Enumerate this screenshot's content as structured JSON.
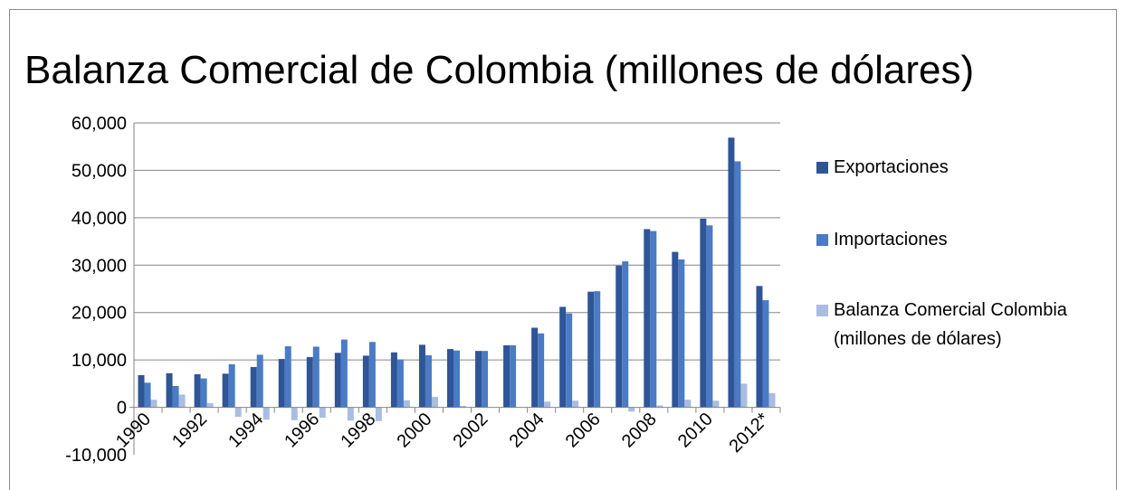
{
  "chart_data": {
    "type": "bar",
    "title": "Balanza Comercial de Colombia (millones de dólares)",
    "xlabel": "",
    "ylabel": "",
    "ylim": [
      -10000,
      60000
    ],
    "yticks": [
      "-10,000",
      "0",
      "10,000",
      "20,000",
      "30,000",
      "40,000",
      "50,000",
      "60,000"
    ],
    "ytick_values": [
      -10000,
      0,
      10000,
      20000,
      30000,
      40000,
      50000,
      60000
    ],
    "categories": [
      "1990",
      "1991",
      "1992",
      "1993",
      "1994",
      "1995",
      "1996",
      "1997",
      "1998",
      "1999",
      "2000",
      "2001",
      "2002",
      "2003",
      "2004",
      "2005",
      "2006",
      "2007",
      "2008",
      "2009",
      "2010",
      "2011",
      "2012*"
    ],
    "xtick_labels": [
      "1990",
      "",
      "1992",
      "",
      "1994",
      "",
      "1996",
      "",
      "1998",
      "",
      "2000",
      "",
      "2002",
      "",
      "2004",
      "",
      "2006",
      "",
      "2008",
      "",
      "2010",
      "",
      "2012*"
    ],
    "grid": true,
    "legend_position": "right",
    "series": [
      {
        "name": "Exportaciones",
        "color": "#2f5597",
        "values": [
          6800,
          7200,
          7000,
          7100,
          8500,
          10200,
          10600,
          11500,
          10900,
          11600,
          13200,
          12300,
          11900,
          13100,
          16800,
          21200,
          24400,
          29900,
          37600,
          32800,
          39800,
          56900,
          25600
        ]
      },
      {
        "name": "Importaciones",
        "color": "#4a7bc4",
        "values": [
          5200,
          4500,
          6100,
          9100,
          11100,
          12900,
          12800,
          14300,
          13800,
          10100,
          11000,
          12000,
          11900,
          13100,
          15600,
          19800,
          24500,
          30800,
          37200,
          31200,
          38400,
          51900,
          22600
        ]
      },
      {
        "name": "Balanza Comercial Colombia (millones de dólares)",
        "color": "#a9bde0",
        "values": [
          1600,
          2700,
          900,
          -2000,
          -2600,
          -2700,
          -2200,
          -2800,
          -2900,
          1500,
          2200,
          300,
          0,
          0,
          1200,
          1400,
          0,
          -900,
          400,
          1600,
          1400,
          5000,
          3000
        ]
      }
    ]
  },
  "legend": {
    "items": [
      {
        "label": "Exportaciones",
        "color": "#2f5597"
      },
      {
        "label": "Importaciones",
        "color": "#4a7bc4"
      },
      {
        "label_line1": "Balanza Comercial Colombia",
        "label_line2": "(millones de dólares)",
        "color": "#a9bde0"
      }
    ]
  }
}
